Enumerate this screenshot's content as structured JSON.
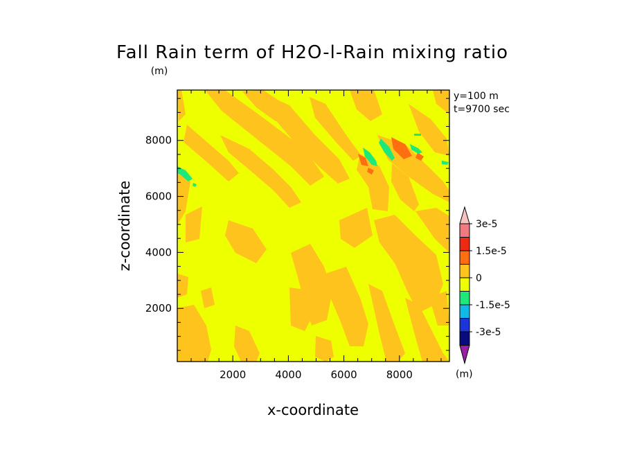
{
  "chart_data": {
    "type": "heatmap",
    "title": "Fall Rain term of H2O-l-Rain mixing ratio",
    "title_unit": "(m)",
    "xlabel": "x-coordinate",
    "ylabel": "z-coordinate",
    "annotations": [
      "y=100 m",
      "t=9700 sec"
    ],
    "xlim": [
      0,
      9800
    ],
    "ylim": [
      100,
      9800
    ],
    "xticks": [
      2000,
      4000,
      6000,
      8000
    ],
    "yticks": [
      2000,
      4000,
      6000,
      8000
    ],
    "xtick_labels": [
      "2000",
      "4000",
      "6000",
      "8000"
    ],
    "ytick_labels": [
      "2000",
      "4000",
      "6000",
      "8000"
    ],
    "colorbar": {
      "levels": [
        -3e-05,
        -2.25e-05,
        -1.5e-05,
        -7.5e-06,
        0,
        7.5e-06,
        1.5e-05,
        2.25e-05,
        3e-05
      ],
      "labels": [
        "-3e-5",
        "-1.5e-5",
        "0",
        "1.5e-5",
        "3e-5"
      ],
      "label_values": [
        -3e-05,
        -1.5e-05,
        0,
        1.5e-05,
        3e-05
      ],
      "unit": "(m)",
      "colors": [
        "#9b1fa6",
        "#0b0b80",
        "#1b35d8",
        "#12b8e8",
        "#1ee87a",
        "#eeff00",
        "#ffc31e",
        "#ff6e10",
        "#ee2a12",
        "#f07a80",
        "#f7c3c0"
      ],
      "background_color": "#eeff00"
    }
  }
}
